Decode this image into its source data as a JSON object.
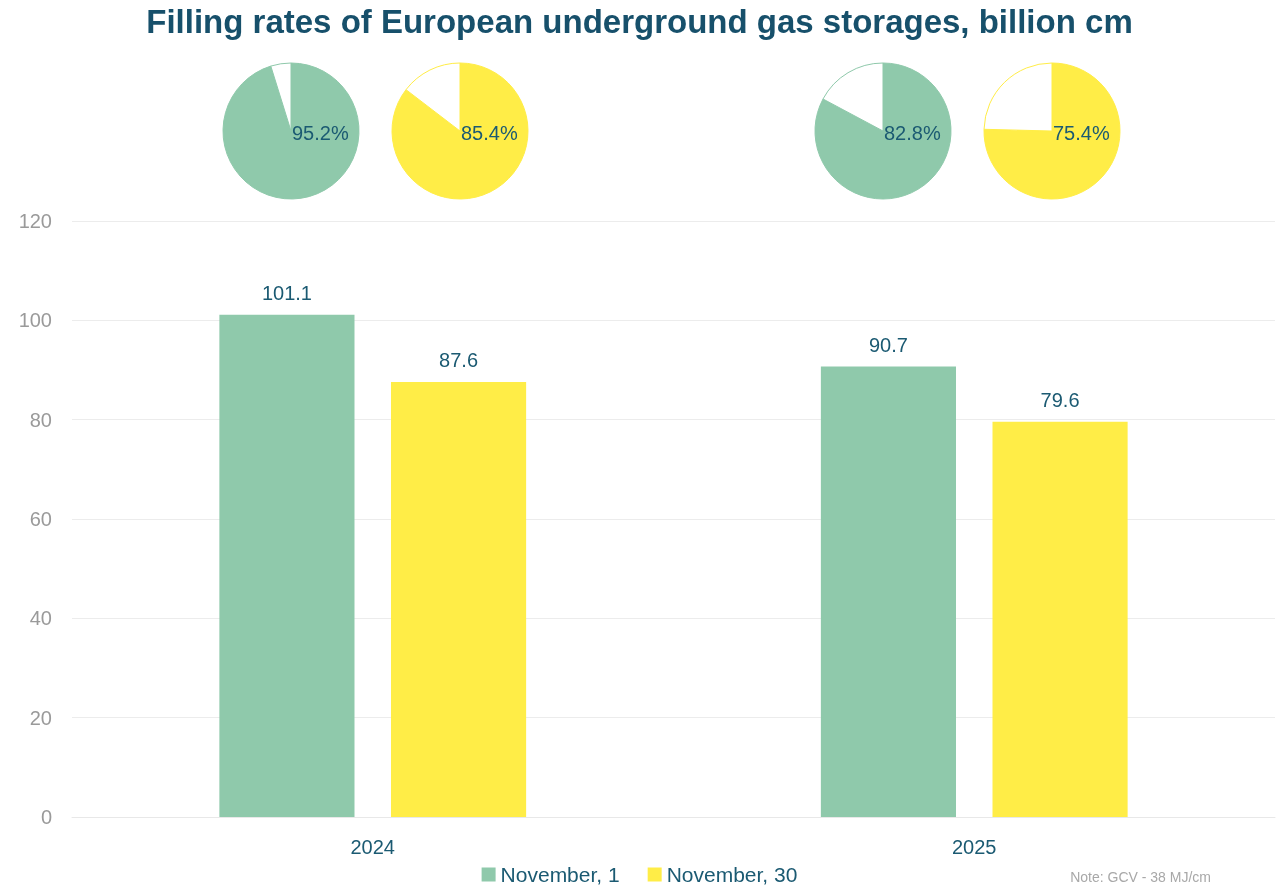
{
  "chart_data": [
    {
      "type": "bar",
      "title": "Filling rates of European underground gas storages, billion cm",
      "categories": [
        "2024",
        "2025"
      ],
      "series": [
        {
          "name": "November, 1",
          "color": "#8fc9ab",
          "values": [
            101.1,
            90.7
          ]
        },
        {
          "name": "November, 30",
          "color": "#ffed47",
          "values": [
            87.6,
            79.6
          ]
        }
      ],
      "ylim": [
        0,
        120
      ],
      "yticks": [
        0,
        20,
        40,
        60,
        80,
        100,
        120
      ],
      "grid": "y",
      "legend": "bottom",
      "data_labels": true,
      "annotations": [
        "Note: GCV - 38 MJ/cm"
      ]
    },
    {
      "type": "pie",
      "categories": [
        null,
        null
      ],
      "values": [
        95.2,
        4.8
      ],
      "colors": [
        "#8fc9ab",
        "#ffffff"
      ],
      "value_labels": [
        "95.2%",
        null
      ]
    },
    {
      "type": "pie",
      "categories": [
        null,
        null
      ],
      "values": [
        85.4,
        14.6
      ],
      "colors": [
        "#ffed47",
        "#ffffff"
      ],
      "value_labels": [
        "85.4%",
        null
      ]
    },
    {
      "type": "pie",
      "categories": [
        null,
        null
      ],
      "values": [
        82.8,
        17.2
      ],
      "colors": [
        "#8fc9ab",
        "#ffffff"
      ],
      "value_labels": [
        "82.8%",
        null
      ]
    },
    {
      "type": "pie",
      "categories": [
        null,
        null
      ],
      "values": [
        75.4,
        24.6
      ],
      "colors": [
        "#ffed47",
        "#ffffff"
      ],
      "value_labels": [
        "75.4%",
        null
      ]
    }
  ]
}
